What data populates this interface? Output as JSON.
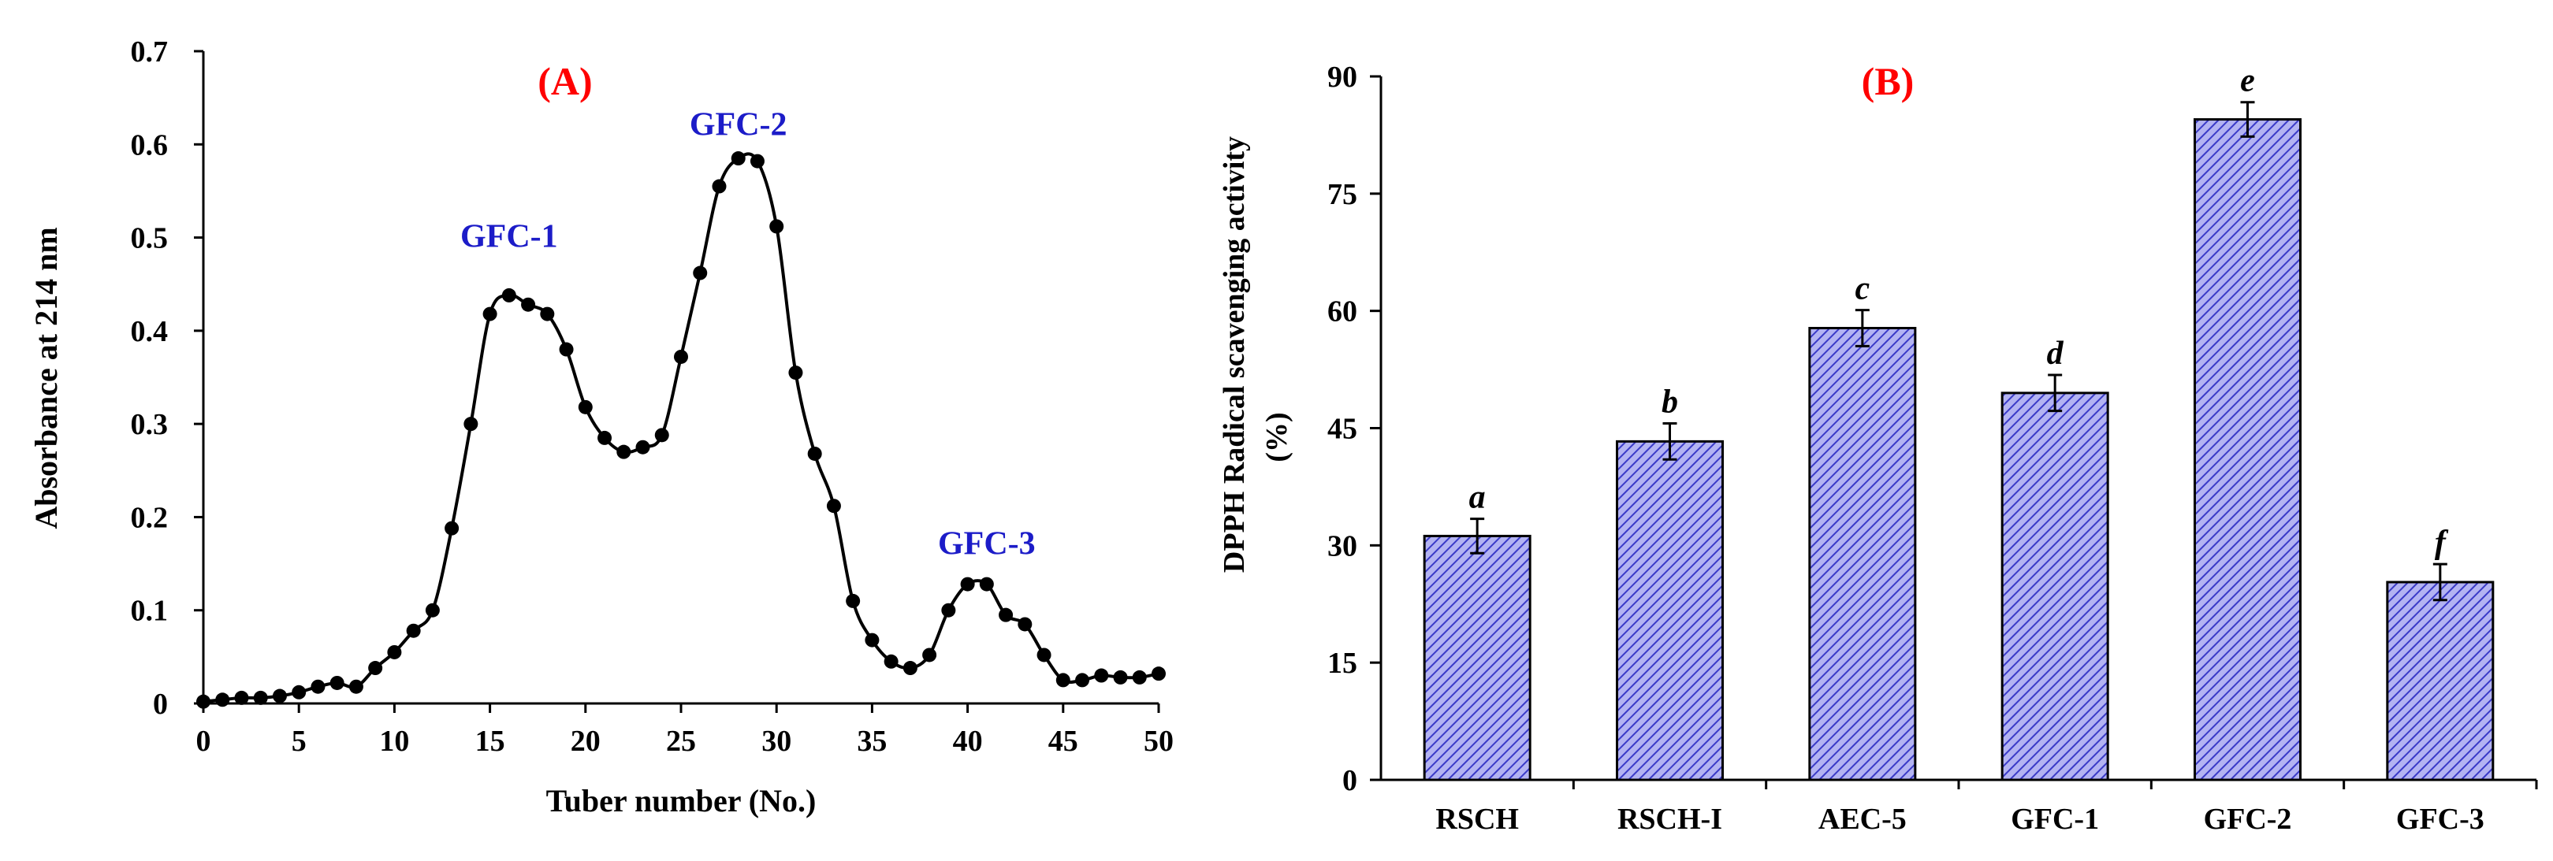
{
  "chart_data": [
    {
      "type": "line",
      "panel_label": "(A)",
      "title": "",
      "xlabel": "Tuber number (No.)",
      "ylabel": "Absorbance at 214 nm",
      "xlim": [
        0,
        50
      ],
      "ylim": [
        0,
        0.7
      ],
      "xticks": [
        0,
        5,
        10,
        15,
        20,
        25,
        30,
        35,
        40,
        45,
        50
      ],
      "xtick_labels": [
        "0",
        "5",
        "10",
        "15",
        "20",
        "25",
        "30",
        "35",
        "40",
        "45",
        "50"
      ],
      "yticks": [
        0,
        0.1,
        0.2,
        0.3,
        0.4,
        0.5,
        0.6,
        0.7
      ],
      "ytick_labels": [
        "0",
        "0.1",
        "0.2",
        "0.3",
        "0.4",
        "0.5",
        "0.6",
        "0.7"
      ],
      "grid": false,
      "series": [
        {
          "name": "absorbance",
          "x": [
            0,
            1,
            2,
            3,
            4,
            5,
            6,
            7,
            8,
            9,
            10,
            11,
            12,
            13,
            14,
            15,
            16,
            17,
            18,
            19,
            20,
            21,
            22,
            23,
            24,
            25,
            26,
            27,
            28,
            29,
            30,
            31,
            32,
            33,
            34,
            35,
            36,
            37,
            38,
            39,
            40,
            41,
            42,
            43,
            44,
            45,
            46,
            47,
            48,
            49,
            50
          ],
          "y": [
            0.002,
            0.004,
            0.006,
            0.006,
            0.008,
            0.012,
            0.018,
            0.022,
            0.018,
            0.038,
            0.055,
            0.078,
            0.1,
            0.188,
            0.3,
            0.418,
            0.438,
            0.428,
            0.418,
            0.38,
            0.318,
            0.285,
            0.27,
            0.275,
            0.288,
            0.372,
            0.462,
            0.555,
            0.585,
            0.582,
            0.512,
            0.355,
            0.268,
            0.212,
            0.11,
            0.068,
            0.045,
            0.038,
            0.052,
            0.1,
            0.128,
            0.128,
            0.095,
            0.085,
            0.052,
            0.025,
            0.025,
            0.03,
            0.028,
            0.028,
            0.032
          ]
        }
      ],
      "annotations": [
        {
          "text": "GFC-1",
          "x": 16,
          "y": 0.49
        },
        {
          "text": "GFC-2",
          "x": 28,
          "y": 0.61
        },
        {
          "text": "GFC-3",
          "x": 41,
          "y": 0.16
        }
      ],
      "colors": {
        "line": "#000000",
        "panel_label": "#ff0000",
        "annotation": "#1c1cc8"
      }
    },
    {
      "type": "bar",
      "panel_label": "(B)",
      "title": "",
      "xlabel": "",
      "ylabel_line1": "DPPH Radical scavenging activity",
      "ylabel_line2": "(%)",
      "ylim": [
        0,
        90
      ],
      "yticks": [
        0,
        15,
        30,
        45,
        60,
        75,
        90
      ],
      "ytick_labels": [
        "0",
        "15",
        "30",
        "45",
        "60",
        "75",
        "90"
      ],
      "grid": false,
      "categories": [
        "RSCH",
        "RSCH-I",
        "AEC-5",
        "GFC-1",
        "GFC-2",
        "GFC-3"
      ],
      "values": [
        31.2,
        43.3,
        57.8,
        49.5,
        84.5,
        25.3
      ],
      "errors": [
        2.2,
        2.3,
        2.3,
        2.3,
        2.2,
        2.3
      ],
      "significance_letters": [
        "a",
        "b",
        "c",
        "d",
        "e",
        "f"
      ],
      "colors": {
        "bar_fill": "#b3b3f2",
        "hatch": "#3a3ac8",
        "bar_edge": "#000000",
        "panel_label": "#ff0000"
      }
    }
  ]
}
